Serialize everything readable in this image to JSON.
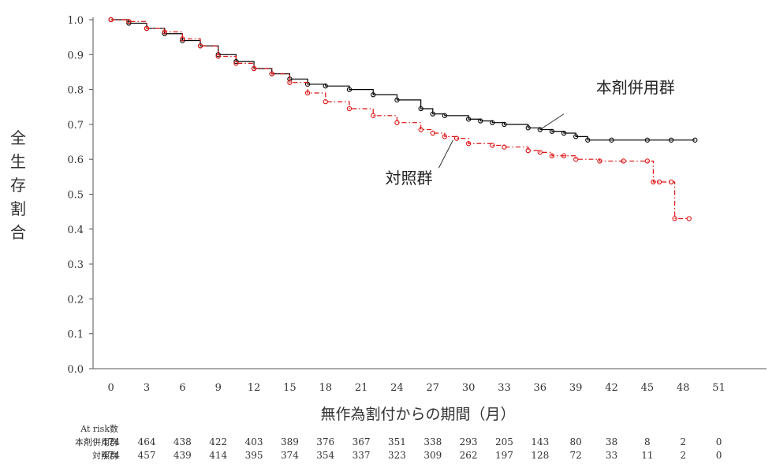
{
  "chart_data": {
    "type": "line",
    "ylabel": "全生存割合",
    "xlabel": "無作為割付からの期間（月）",
    "xlim": [
      -1.5,
      55
    ],
    "ylim": [
      0,
      1.0
    ],
    "x_ticks": [
      0,
      3,
      6,
      9,
      12,
      15,
      18,
      21,
      24,
      27,
      30,
      33,
      36,
      39,
      42,
      45,
      48,
      51
    ],
    "y_ticks": [
      "0.0",
      "0.1",
      "0.2",
      "0.3",
      "0.4",
      "0.5",
      "0.6",
      "0.7",
      "0.8",
      "0.9",
      "1.0"
    ],
    "series": [
      {
        "name": "本剤併用群",
        "color": "#000000",
        "style": "solid",
        "points": [
          [
            0,
            1.0
          ],
          [
            1.5,
            0.99
          ],
          [
            3,
            0.975
          ],
          [
            4.5,
            0.96
          ],
          [
            6,
            0.94
          ],
          [
            7.5,
            0.925
          ],
          [
            9,
            0.9
          ],
          [
            10.5,
            0.88
          ],
          [
            12,
            0.86
          ],
          [
            13.5,
            0.845
          ],
          [
            15,
            0.83
          ],
          [
            16.5,
            0.815
          ],
          [
            18,
            0.81
          ],
          [
            20,
            0.8
          ],
          [
            22,
            0.785
          ],
          [
            24,
            0.77
          ],
          [
            26,
            0.745
          ],
          [
            27,
            0.73
          ],
          [
            28,
            0.725
          ],
          [
            30,
            0.715
          ],
          [
            31,
            0.71
          ],
          [
            32,
            0.705
          ],
          [
            33,
            0.7
          ],
          [
            35,
            0.69
          ],
          [
            36,
            0.685
          ],
          [
            37,
            0.68
          ],
          [
            38,
            0.675
          ],
          [
            39,
            0.665
          ],
          [
            40,
            0.655
          ],
          [
            42,
            0.655
          ],
          [
            45,
            0.655
          ],
          [
            47,
            0.655
          ],
          [
            49,
            0.655
          ]
        ]
      },
      {
        "name": "対照群",
        "color": "#dd1111",
        "style": "dashdot",
        "points": [
          [
            0,
            1.0
          ],
          [
            1.5,
            0.995
          ],
          [
            3,
            0.975
          ],
          [
            4.5,
            0.965
          ],
          [
            6,
            0.945
          ],
          [
            7.5,
            0.925
          ],
          [
            9,
            0.895
          ],
          [
            10.5,
            0.875
          ],
          [
            12,
            0.86
          ],
          [
            13.5,
            0.845
          ],
          [
            15,
            0.82
          ],
          [
            16.5,
            0.79
          ],
          [
            18,
            0.765
          ],
          [
            20,
            0.745
          ],
          [
            22,
            0.725
          ],
          [
            24,
            0.705
          ],
          [
            26,
            0.685
          ],
          [
            27,
            0.675
          ],
          [
            28,
            0.665
          ],
          [
            29,
            0.66
          ],
          [
            30,
            0.645
          ],
          [
            32,
            0.64
          ],
          [
            33,
            0.635
          ],
          [
            35,
            0.625
          ],
          [
            36,
            0.62
          ],
          [
            37,
            0.61
          ],
          [
            38,
            0.61
          ],
          [
            39,
            0.6
          ],
          [
            41,
            0.595
          ],
          [
            43,
            0.595
          ],
          [
            45,
            0.595
          ],
          [
            45.5,
            0.535
          ],
          [
            46,
            0.535
          ],
          [
            47,
            0.535
          ],
          [
            47.3,
            0.43
          ],
          [
            48.5,
            0.43
          ]
        ]
      }
    ],
    "series_labels": [
      {
        "text": "本剤併用群",
        "x": 44,
        "y": 0.79,
        "lx": 38,
        "ly": 0.73,
        "tx": 36,
        "ty": 0.685
      },
      {
        "text": "対照群",
        "x": 25,
        "y": 0.53,
        "lx": 27.5,
        "ly": 0.575,
        "tx": 28.7,
        "ty": 0.655
      }
    ],
    "at_risk": {
      "title": "At risk数",
      "rows": [
        {
          "label": "本剤併用群",
          "values": [
            "474",
            "464",
            "438",
            "422",
            "403",
            "389",
            "376",
            "367",
            "351",
            "338",
            "293",
            "205",
            "143",
            "80",
            "38",
            "8",
            "2",
            "0"
          ]
        },
        {
          "label": "対照群",
          "values": [
            "474",
            "457",
            "439",
            "414",
            "395",
            "374",
            "354",
            "337",
            "323",
            "309",
            "262",
            "197",
            "128",
            "72",
            "33",
            "11",
            "2",
            "0"
          ]
        }
      ]
    }
  }
}
